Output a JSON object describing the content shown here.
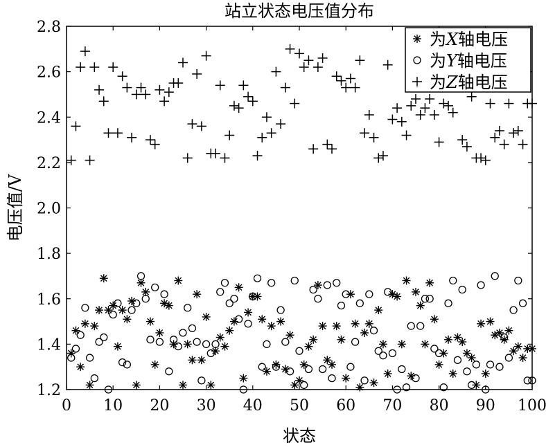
{
  "chart_data": {
    "type": "scatter",
    "title": "站立状态电压值分布",
    "xlabel": "状态",
    "ylabel": "电压值/V",
    "xlim": [
      0,
      100
    ],
    "ylim": [
      1.2,
      2.8
    ],
    "xticks": [
      0,
      10,
      20,
      30,
      40,
      50,
      60,
      70,
      80,
      90,
      100
    ],
    "yticks": [
      1.2,
      1.4,
      1.6,
      1.8,
      2.0,
      2.2,
      2.4,
      2.6,
      2.8
    ],
    "ytick_labels": [
      "1.2",
      "1.4",
      "1.6",
      "1.8",
      "2.0",
      "2.2",
      "2.4",
      "2.6",
      "2.8"
    ],
    "grid": false,
    "legend": {
      "position": "top-right",
      "entries": [
        {
          "prefix": "为",
          "axis": "X",
          "suffix": "轴电压",
          "marker": "asterisk"
        },
        {
          "prefix": "为",
          "axis": "Y",
          "suffix": "轴电压",
          "marker": "circle"
        },
        {
          "prefix": "为",
          "axis": "Z",
          "suffix": "轴电压",
          "marker": "plus"
        }
      ]
    },
    "series": [
      {
        "name": "为X轴电压",
        "marker": "asterisk",
        "x": [
          1,
          2,
          3,
          4,
          5,
          6,
          7,
          8,
          9,
          10,
          11,
          12,
          13,
          14,
          15,
          16,
          17,
          18,
          19,
          20,
          21,
          22,
          23,
          24,
          25,
          26,
          27,
          28,
          29,
          30,
          31,
          32,
          33,
          34,
          35,
          36,
          37,
          38,
          39,
          40,
          41,
          42,
          43,
          44,
          45,
          46,
          47,
          48,
          49,
          50,
          51,
          52,
          53,
          54,
          55,
          56,
          57,
          58,
          59,
          60,
          61,
          62,
          63,
          64,
          65,
          66,
          67,
          68,
          69,
          70,
          71,
          72,
          73,
          74,
          75,
          76,
          77,
          78,
          79,
          80,
          81,
          82,
          83,
          84,
          85,
          86,
          87,
          88,
          89,
          90,
          91,
          92,
          93,
          94,
          95,
          96,
          97,
          98,
          99,
          100
        ],
        "y": [
          1.36,
          1.46,
          1.3,
          1.49,
          1.22,
          1.48,
          1.55,
          1.69,
          1.55,
          1.57,
          1.39,
          1.55,
          1.51,
          1.59,
          1.22,
          1.67,
          1.63,
          1.5,
          1.31,
          1.45,
          1.58,
          1.57,
          1.4,
          1.68,
          1.22,
          1.4,
          1.33,
          1.62,
          1.33,
          1.52,
          1.22,
          1.37,
          1.43,
          1.39,
          1.46,
          1.5,
          1.65,
          1.25,
          1.54,
          1.61,
          1.61,
          1.51,
          1.28,
          1.48,
          1.31,
          1.5,
          1.29,
          1.44,
          1.22,
          1.24,
          1.31,
          1.39,
          1.42,
          1.66,
          1.48,
          1.33,
          1.31,
          1.48,
          1.42,
          1.25,
          1.62,
          1.49,
          1.21,
          1.45,
          1.49,
          1.23,
          1.55,
          1.4,
          1.27,
          1.62,
          1.61,
          1.4,
          1.68,
          1.26,
          1.63,
          1.57,
          1.4,
          1.67,
          1.51,
          1.31,
          1.36,
          1.42,
          1.27,
          1.43,
          1.41,
          1.36,
          1.34,
          1.22,
          1.49,
          1.27,
          1.5,
          1.44,
          1.45,
          1.42,
          1.46,
          1.37,
          1.39,
          1.34,
          1.38,
          1.38
        ]
      },
      {
        "name": "为Y轴电压",
        "marker": "circle",
        "x": [
          1,
          2,
          3,
          4,
          5,
          6,
          7,
          8,
          9,
          10,
          11,
          12,
          13,
          14,
          15,
          16,
          17,
          18,
          19,
          20,
          21,
          22,
          23,
          24,
          25,
          26,
          27,
          28,
          29,
          30,
          31,
          32,
          33,
          34,
          35,
          36,
          37,
          38,
          39,
          40,
          41,
          42,
          43,
          44,
          45,
          46,
          47,
          48,
          49,
          50,
          51,
          52,
          53,
          54,
          55,
          56,
          57,
          58,
          59,
          60,
          61,
          62,
          63,
          64,
          65,
          66,
          67,
          68,
          69,
          70,
          71,
          72,
          73,
          74,
          75,
          76,
          77,
          78,
          79,
          80,
          81,
          82,
          83,
          84,
          85,
          86,
          87,
          88,
          89,
          90,
          91,
          92,
          93,
          94,
          95,
          96,
          97,
          98,
          99,
          100
        ],
        "y": [
          1.34,
          1.38,
          1.44,
          1.56,
          1.34,
          1.25,
          1.41,
          1.43,
          1.2,
          1.53,
          1.58,
          1.32,
          1.31,
          1.55,
          1.58,
          1.7,
          1.6,
          1.42,
          1.65,
          1.41,
          1.62,
          1.28,
          1.42,
          1.39,
          1.45,
          1.56,
          1.47,
          1.41,
          1.24,
          1.4,
          1.36,
          1.4,
          1.63,
          1.67,
          1.58,
          1.6,
          1.51,
          1.2,
          1.49,
          1.61,
          1.69,
          1.3,
          1.4,
          1.67,
          1.3,
          1.55,
          1.41,
          1.28,
          1.68,
          1.37,
          1.22,
          1.29,
          1.64,
          1.6,
          1.29,
          1.66,
          1.25,
          1.67,
          1.57,
          1.62,
          1.3,
          1.41,
          1.58,
          1.24,
          1.62,
          1.46,
          1.37,
          1.35,
          1.63,
          1.36,
          1.2,
          1.29,
          1.21,
          1.48,
          1.25,
          1.48,
          1.6,
          1.6,
          1.38,
          1.36,
          1.21,
          1.58,
          1.68,
          1.33,
          1.64,
          1.28,
          1.22,
          1.31,
          1.66,
          1.2,
          1.31,
          1.7,
          1.3,
          1.43,
          1.34,
          1.55,
          1.68,
          1.58,
          1.24,
          1.24
        ]
      },
      {
        "name": "为Z轴电压",
        "marker": "plus",
        "x": [
          1,
          2,
          3,
          4,
          5,
          6,
          7,
          8,
          9,
          10,
          11,
          12,
          13,
          14,
          15,
          16,
          17,
          18,
          19,
          20,
          21,
          22,
          23,
          24,
          25,
          26,
          27,
          28,
          29,
          30,
          31,
          32,
          33,
          34,
          35,
          36,
          37,
          38,
          39,
          40,
          41,
          42,
          43,
          44,
          45,
          46,
          47,
          48,
          49,
          50,
          51,
          52,
          53,
          54,
          55,
          56,
          57,
          58,
          59,
          60,
          61,
          62,
          63,
          64,
          65,
          66,
          67,
          68,
          69,
          70,
          71,
          72,
          73,
          74,
          75,
          76,
          77,
          78,
          79,
          80,
          81,
          82,
          83,
          84,
          85,
          86,
          87,
          88,
          89,
          90,
          91,
          92,
          93,
          94,
          95,
          96,
          97,
          98,
          99,
          100
        ],
        "y": [
          2.21,
          2.36,
          2.62,
          2.69,
          2.21,
          2.62,
          2.52,
          2.47,
          2.33,
          2.62,
          2.33,
          2.58,
          2.53,
          2.31,
          2.5,
          2.53,
          2.5,
          2.3,
          2.28,
          2.52,
          2.47,
          2.51,
          2.55,
          2.55,
          2.64,
          2.22,
          2.37,
          2.59,
          2.36,
          2.67,
          2.24,
          2.24,
          2.54,
          2.22,
          2.32,
          2.45,
          2.44,
          2.54,
          2.49,
          2.47,
          2.23,
          2.31,
          2.4,
          2.33,
          2.6,
          2.37,
          2.53,
          2.7,
          2.46,
          2.68,
          2.62,
          2.65,
          2.26,
          2.62,
          2.66,
          2.28,
          2.26,
          2.58,
          2.56,
          2.53,
          2.57,
          2.53,
          2.65,
          2.33,
          2.41,
          2.31,
          2.22,
          2.23,
          2.63,
          2.39,
          2.44,
          2.38,
          2.32,
          2.45,
          2.48,
          2.41,
          2.44,
          2.48,
          2.41,
          2.29,
          2.46,
          2.45,
          2.42,
          2.57,
          2.3,
          2.27,
          2.49,
          2.22,
          2.22,
          2.21,
          2.46,
          2.31,
          2.34,
          2.28,
          2.46,
          2.33,
          2.34,
          2.28,
          2.46,
          2.46
        ]
      }
    ]
  }
}
